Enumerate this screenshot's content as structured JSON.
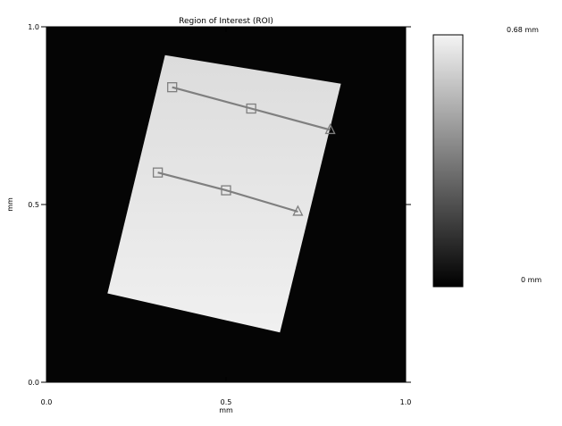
{
  "chart_data": {
    "type": "heatmap",
    "title": "Region of Interest (ROI)",
    "xlabel": "mm",
    "ylabel": "mm",
    "xlim": [
      0.0,
      1.0
    ],
    "ylim": [
      0.0,
      1.0
    ],
    "x_ticks": [
      {
        "value": 0.0,
        "label": "0.0"
      },
      {
        "value": 0.5,
        "label": "0.5"
      },
      {
        "value": 1.0,
        "label": "1.0"
      }
    ],
    "y_ticks": [
      {
        "value": 0.0,
        "label": "0.0"
      },
      {
        "value": 0.5,
        "label": "0.5"
      },
      {
        "value": 1.0,
        "label": "1.0"
      }
    ],
    "background_color": "#050505",
    "colorbar": {
      "min_label": "0 mm",
      "max_label": "0.68 mm",
      "min_value": 0,
      "max_value": 0.68,
      "min_color": "#000000",
      "max_color": "#f4f4f4"
    },
    "region": {
      "corners": [
        [
          0.33,
          0.92
        ],
        [
          0.82,
          0.84
        ],
        [
          0.65,
          0.14
        ],
        [
          0.17,
          0.25
        ]
      ],
      "color_top": "#dcdcdc",
      "color_bottom": "#f0f0f0"
    },
    "profile_lines": [
      {
        "color": "#7f7f7f",
        "points": [
          [
            0.35,
            0.83
          ],
          [
            0.57,
            0.77
          ],
          [
            0.79,
            0.71
          ]
        ],
        "marker_shapes": [
          "square",
          "square",
          "triangle"
        ]
      },
      {
        "color": "#7f7f7f",
        "points": [
          [
            0.31,
            0.59
          ],
          [
            0.5,
            0.54
          ],
          [
            0.7,
            0.48
          ]
        ],
        "marker_shapes": [
          "square",
          "square",
          "triangle"
        ]
      }
    ]
  }
}
